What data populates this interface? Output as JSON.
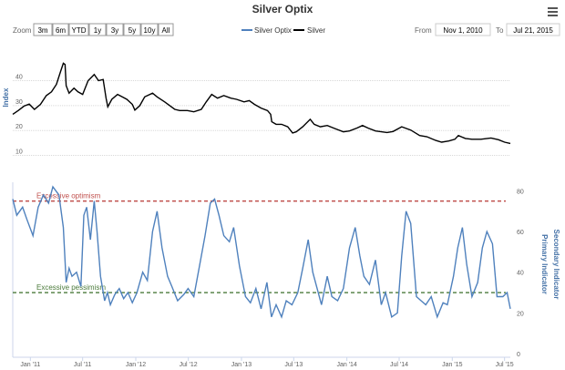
{
  "title": "Silver Optix",
  "menu_icon": "hamburger-menu-icon",
  "range_selector": {
    "zoom_label": "Zoom",
    "buttons": [
      "3m",
      "6m",
      "YTD",
      "1y",
      "3y",
      "5y",
      "10y",
      "All"
    ]
  },
  "range_input": {
    "from_label": "From",
    "from_value": "Nov 1, 2010",
    "to_label": "To",
    "to_value": "Jul 21, 2015"
  },
  "colors": {
    "silver_optix": "#4f81bd",
    "silver": "#000000",
    "optimism_line": "#c0504d",
    "pessimism_line": "#4a7a3a"
  },
  "chart_data": [
    {
      "type": "line",
      "ylabel": "Index",
      "y_ticks": [
        10,
        20,
        30,
        40
      ],
      "ylim": [
        8,
        53
      ],
      "grid": true,
      "legend_position": "top-center",
      "x_ticks": [
        "Jan '11",
        "Jul '11",
        "Jan '12",
        "Jul '12",
        "Jan '13",
        "Jul '13",
        "Jan '14",
        "Jul '14",
        "Jan '15",
        "Jul '15"
      ],
      "series": [
        {
          "name": "Silver",
          "x": [
            "2010-11-01",
            "2010-11-20",
            "2010-12-10",
            "2010-12-28",
            "2011-01-15",
            "2011-02-05",
            "2011-02-25",
            "2011-03-15",
            "2011-04-01",
            "2011-04-15",
            "2011-04-25",
            "2011-05-01",
            "2011-05-05",
            "2011-05-15",
            "2011-06-01",
            "2011-06-15",
            "2011-07-01",
            "2011-07-20",
            "2011-08-10",
            "2011-08-25",
            "2011-09-10",
            "2011-09-20",
            "2011-09-26",
            "2011-10-10",
            "2011-10-30",
            "2011-11-15",
            "2011-12-01",
            "2011-12-20",
            "2011-12-29",
            "2012-01-15",
            "2012-02-01",
            "2012-02-28",
            "2012-03-15",
            "2012-04-10",
            "2012-05-15",
            "2012-06-01",
            "2012-06-28",
            "2012-07-20",
            "2012-08-15",
            "2012-09-01",
            "2012-09-20",
            "2012-10-10",
            "2012-11-01",
            "2012-11-25",
            "2012-12-15",
            "2013-01-10",
            "2013-01-28",
            "2013-02-15",
            "2013-03-10",
            "2013-04-01",
            "2013-04-12",
            "2013-04-16",
            "2013-05-01",
            "2013-05-20",
            "2013-06-10",
            "2013-06-27",
            "2013-07-10",
            "2013-08-01",
            "2013-08-27",
            "2013-09-10",
            "2013-10-01",
            "2013-10-25",
            "2013-11-20",
            "2013-12-20",
            "2014-01-10",
            "2014-02-05",
            "2014-02-24",
            "2014-03-15",
            "2014-04-10",
            "2014-05-20",
            "2014-06-10",
            "2014-07-10",
            "2014-08-10",
            "2014-09-10",
            "2014-10-05",
            "2014-11-05",
            "2014-11-25",
            "2014-12-20",
            "2015-01-10",
            "2015-01-22",
            "2015-02-15",
            "2015-03-10",
            "2015-04-10",
            "2015-05-15",
            "2015-06-10",
            "2015-07-01",
            "2015-07-21"
          ],
          "values": [
            26.5,
            28.0,
            29.8,
            30.6,
            28.5,
            30.5,
            34.0,
            35.5,
            38.5,
            43.5,
            47.0,
            46.5,
            38.0,
            35.0,
            37.0,
            35.5,
            34.5,
            40.0,
            42.5,
            40.0,
            40.5,
            33.0,
            29.5,
            32.5,
            34.5,
            33.5,
            32.5,
            30.5,
            28.2,
            30.0,
            33.5,
            35.0,
            33.5,
            31.5,
            28.5,
            28.0,
            28.0,
            27.5,
            28.5,
            31.5,
            34.5,
            33.0,
            34.0,
            33.0,
            32.5,
            31.5,
            32.0,
            30.5,
            29.0,
            28.0,
            26.5,
            23.5,
            22.5,
            22.5,
            21.5,
            19.0,
            19.5,
            21.5,
            24.5,
            22.5,
            21.5,
            22.0,
            20.8,
            19.5,
            19.8,
            21.0,
            22.0,
            21.0,
            19.8,
            19.2,
            19.6,
            21.5,
            20.2,
            18.0,
            17.5,
            16.0,
            15.3,
            15.8,
            16.5,
            18.0,
            16.8,
            16.5,
            16.5,
            17.0,
            16.3,
            15.3,
            14.8
          ]
        }
      ]
    },
    {
      "type": "line",
      "ylabel": "Primary Indicator",
      "y2label": "Secondary Indicator",
      "y_ticks": [
        0,
        20,
        40,
        60,
        80
      ],
      "ylim": [
        0,
        82
      ],
      "grid": false,
      "annotations": [
        {
          "label": "Excessive optimism",
          "value": 75
        },
        {
          "label": "Excessive pessimism",
          "value": 30
        }
      ],
      "x_ticks": [
        "Jan '11",
        "Jul '11",
        "Jan '12",
        "Jul '12",
        "Jan '13",
        "Jul '13",
        "Jan '14",
        "Jul '14",
        "Jan '15",
        "Jul '15"
      ],
      "series": [
        {
          "name": "Silver Optix",
          "x": [
            "2010-11-01",
            "2010-11-15",
            "2010-12-05",
            "2010-12-20",
            "2011-01-10",
            "2011-01-28",
            "2011-02-15",
            "2011-03-05",
            "2011-03-20",
            "2011-04-10",
            "2011-04-25",
            "2011-05-05",
            "2011-05-15",
            "2011-05-25",
            "2011-06-10",
            "2011-06-25",
            "2011-07-05",
            "2011-07-15",
            "2011-07-28",
            "2011-08-10",
            "2011-08-20",
            "2011-09-01",
            "2011-09-15",
            "2011-09-25",
            "2011-10-05",
            "2011-10-20",
            "2011-11-05",
            "2011-11-20",
            "2011-12-05",
            "2011-12-20",
            "2012-01-05",
            "2012-01-25",
            "2012-02-10",
            "2012-02-28",
            "2012-03-15",
            "2012-04-01",
            "2012-04-20",
            "2012-05-05",
            "2012-05-25",
            "2012-06-15",
            "2012-06-30",
            "2012-07-20",
            "2012-08-10",
            "2012-08-28",
            "2012-09-15",
            "2012-09-30",
            "2012-10-15",
            "2012-11-01",
            "2012-11-20",
            "2012-12-05",
            "2012-12-25",
            "2013-01-15",
            "2013-02-01",
            "2013-02-20",
            "2013-03-10",
            "2013-03-30",
            "2013-04-15",
            "2013-05-01",
            "2013-05-20",
            "2013-06-05",
            "2013-06-25",
            "2013-07-15",
            "2013-08-01",
            "2013-08-20",
            "2013-09-05",
            "2013-09-20",
            "2013-10-05",
            "2013-10-25",
            "2013-11-10",
            "2013-11-30",
            "2013-12-20",
            "2014-01-10",
            "2014-01-30",
            "2014-02-15",
            "2014-03-01",
            "2014-03-20",
            "2014-04-10",
            "2014-04-30",
            "2014-05-15",
            "2014-06-05",
            "2014-06-25",
            "2014-07-10",
            "2014-07-25",
            "2014-08-10",
            "2014-08-30",
            "2014-09-15",
            "2014-10-01",
            "2014-10-20",
            "2014-11-10",
            "2014-11-30",
            "2014-12-15",
            "2015-01-05",
            "2015-01-20",
            "2015-02-05",
            "2015-02-20",
            "2015-03-10",
            "2015-03-30",
            "2015-04-15",
            "2015-05-01",
            "2015-05-20",
            "2015-06-05",
            "2015-06-25",
            "2015-07-10",
            "2015-07-21"
          ],
          "values": [
            76,
            68,
            72,
            66,
            58,
            72,
            78,
            74,
            82,
            78,
            62,
            35,
            42,
            38,
            40,
            33,
            68,
            72,
            56,
            75,
            60,
            38,
            26,
            30,
            24,
            29,
            32,
            27,
            30,
            25,
            30,
            40,
            36,
            60,
            70,
            52,
            38,
            33,
            26,
            29,
            32,
            28,
            44,
            58,
            74,
            76,
            68,
            58,
            55,
            62,
            43,
            28,
            25,
            32,
            22,
            35,
            18,
            24,
            18,
            26,
            24,
            30,
            42,
            56,
            40,
            32,
            24,
            38,
            28,
            26,
            32,
            52,
            62,
            48,
            38,
            34,
            46,
            24,
            30,
            18,
            20,
            48,
            70,
            64,
            28,
            26,
            24,
            28,
            18,
            25,
            24,
            38,
            52,
            62,
            44,
            28,
            35,
            52,
            60,
            54,
            28,
            28,
            30,
            22
          ]
        }
      ]
    }
  ]
}
